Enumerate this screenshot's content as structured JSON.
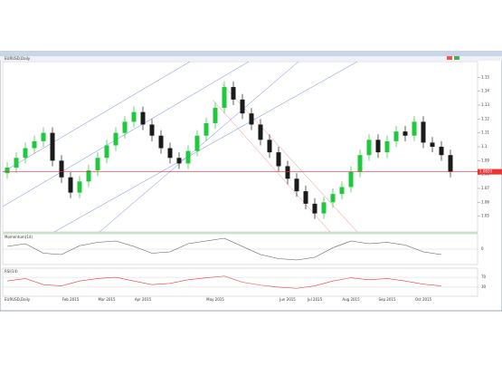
{
  "chart_data": {
    "type": "candlestick",
    "title": "EURUSD,Daily",
    "categories": [
      null,
      null,
      null,
      null,
      null,
      null,
      null,
      "Feb 2015",
      null,
      null,
      null,
      "Mar 2015",
      null,
      null,
      null,
      "Apr 2015",
      null,
      null,
      null,
      null,
      null,
      null,
      null,
      "May 2015",
      null,
      null,
      null,
      null,
      null,
      null,
      null,
      "Jun 2015",
      null,
      null,
      "Jul 2015",
      null,
      null,
      null,
      "Aug 2015",
      null,
      null,
      null,
      "Sep 2015",
      null,
      null,
      null,
      "Oct 2015",
      null,
      null,
      null
    ],
    "open": [
      1.081,
      1.085,
      1.092,
      1.099,
      1.104,
      1.11,
      1.09,
      1.078,
      1.067,
      1.075,
      1.083,
      1.092,
      1.101,
      1.11,
      1.118,
      1.125,
      1.116,
      1.108,
      1.099,
      1.092,
      1.088,
      1.097,
      1.108,
      1.117,
      1.128,
      1.143,
      1.134,
      1.124,
      1.116,
      1.105,
      1.096,
      1.086,
      1.077,
      1.068,
      1.059,
      1.052,
      1.06,
      1.066,
      1.071,
      1.082,
      1.094,
      1.105,
      1.096,
      1.104,
      1.111,
      1.108,
      1.118,
      1.103,
      1.1,
      1.094
    ],
    "high": [
      1.089,
      1.096,
      1.103,
      1.108,
      1.114,
      1.114,
      1.094,
      1.082,
      1.079,
      1.087,
      1.096,
      1.105,
      1.114,
      1.122,
      1.129,
      1.129,
      1.12,
      1.112,
      1.103,
      1.096,
      1.101,
      1.112,
      1.121,
      1.132,
      1.147,
      1.147,
      1.138,
      1.128,
      1.12,
      1.109,
      1.1,
      1.09,
      1.081,
      1.072,
      1.063,
      1.064,
      1.07,
      1.075,
      1.086,
      1.098,
      1.109,
      1.109,
      1.108,
      1.115,
      1.115,
      1.122,
      1.122,
      1.107,
      1.104,
      1.098
    ],
    "low": [
      1.077,
      1.081,
      1.088,
      1.095,
      1.1,
      1.086,
      1.074,
      1.063,
      1.063,
      1.071,
      1.079,
      1.088,
      1.097,
      1.106,
      1.114,
      1.112,
      1.104,
      1.095,
      1.088,
      1.084,
      1.084,
      1.093,
      1.104,
      1.113,
      1.124,
      1.13,
      1.12,
      1.112,
      1.101,
      1.092,
      1.082,
      1.073,
      1.064,
      1.055,
      1.048,
      1.048,
      1.056,
      1.062,
      1.067,
      1.078,
      1.09,
      1.092,
      1.092,
      1.1,
      1.104,
      1.104,
      1.099,
      1.096,
      1.09,
      1.078
    ],
    "close": [
      1.085,
      1.092,
      1.099,
      1.104,
      1.11,
      1.09,
      1.078,
      1.067,
      1.075,
      1.083,
      1.092,
      1.101,
      1.11,
      1.118,
      1.125,
      1.116,
      1.108,
      1.099,
      1.092,
      1.088,
      1.097,
      1.108,
      1.117,
      1.128,
      1.143,
      1.134,
      1.124,
      1.116,
      1.105,
      1.096,
      1.086,
      1.077,
      1.068,
      1.059,
      1.052,
      1.06,
      1.066,
      1.071,
      1.082,
      1.094,
      1.105,
      1.096,
      1.104,
      1.111,
      1.108,
      1.118,
      1.103,
      1.1,
      1.094,
      1.082
    ],
    "up_color": "#1fc93c",
    "down_color": "#1a1a1a",
    "ylim": [
      1.04,
      1.16
    ],
    "yticks": [
      1.05,
      1.06,
      1.07,
      1.08,
      1.09,
      1.1,
      1.11,
      1.12,
      1.13,
      1.14,
      1.15
    ],
    "last_price": {
      "value": 1.082,
      "label": "1.0820"
    },
    "indicators": [
      {
        "name": "Momentum(14)",
        "color": "#555555",
        "ylim": [
          -0.02,
          0.02
        ],
        "yticks": [
          0
        ],
        "values": [
          0.004,
          0.008,
          -0.006,
          -0.008,
          0.005,
          0.01,
          0.012,
          0.004,
          -0.006,
          -0.004,
          0.008,
          0.012,
          0.016,
          0.004,
          -0.008,
          -0.014,
          -0.016,
          -0.012,
          0.002,
          0.012,
          0.008,
          0.01,
          0.006,
          -0.004,
          -0.008
        ]
      },
      {
        "name": "RSI(14)",
        "color": "#e04040",
        "ylim": [
          0,
          100
        ],
        "yticks": [
          30,
          70
        ],
        "values": [
          55,
          65,
          40,
          35,
          55,
          65,
          70,
          55,
          40,
          45,
          60,
          68,
          75,
          50,
          38,
          30,
          25,
          35,
          55,
          68,
          60,
          65,
          55,
          42,
          35
        ]
      }
    ]
  }
}
